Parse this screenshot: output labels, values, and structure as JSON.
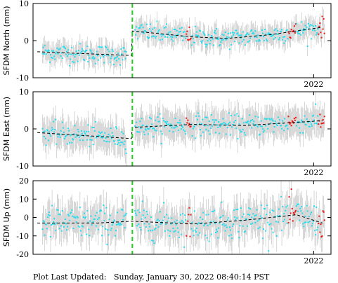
{
  "footer": {
    "label": "Plot Last Updated:",
    "timestamp": "Sunday, January 30, 2022 08:40:14 PST"
  },
  "colors": {
    "normal": "#22ddee",
    "recent": "#ee1111",
    "error": "#cccccc",
    "trend": "#000000",
    "event": "#22cc22"
  },
  "event_year": 2019.9,
  "chart_data": [
    {
      "type": "scatter",
      "ylabel": "SFDM North (mm)",
      "ylim": [
        -10,
        10
      ],
      "yticks": [
        -10,
        0,
        10
      ],
      "xlim": [
        2018.75,
        2022.2
      ],
      "xtick_labels": [
        {
          "x": 2022.0,
          "label": "2022"
        }
      ],
      "grid": false,
      "error_mm": 2.6,
      "trend": [
        [
          2018.8,
          -3.0
        ],
        [
          2019.89,
          -4.0
        ],
        [
          2019.9,
          2.6
        ],
        [
          2020.6,
          1.0
        ],
        [
          2021.0,
          0.6
        ],
        [
          2021.5,
          1.6
        ],
        [
          2022.1,
          3.6
        ]
      ],
      "recent_ranges": [
        [
          2020.52,
          2020.58
        ],
        [
          2021.7,
          2021.8
        ],
        [
          2022.05,
          2022.15
        ]
      ],
      "series": [
        {
          "values_model": "trend + noise",
          "noise_sd": 1.3
        }
      ]
    },
    {
      "type": "scatter",
      "ylabel": "SFDM East (mm)",
      "ylim": [
        -10,
        10
      ],
      "yticks": [
        -10,
        0,
        10
      ],
      "xlim": [
        2018.75,
        2022.2
      ],
      "xtick_labels": [
        {
          "x": 2022.0,
          "label": "2022"
        }
      ],
      "grid": false,
      "error_mm": 3.8,
      "trend": [
        [
          2018.8,
          -1.0
        ],
        [
          2019.89,
          -2.6
        ],
        [
          2019.9,
          0.4
        ],
        [
          2020.6,
          1.2
        ],
        [
          2021.2,
          0.9
        ],
        [
          2022.1,
          2.2
        ]
      ],
      "recent_ranges": [
        [
          2020.52,
          2020.58
        ],
        [
          2021.7,
          2021.8
        ],
        [
          2022.05,
          2022.15
        ]
      ],
      "series": [
        {
          "values_model": "trend + noise",
          "noise_sd": 1.4
        }
      ]
    },
    {
      "type": "scatter",
      "ylabel": "SFDM Up (mm)",
      "ylim": [
        -20,
        20
      ],
      "yticks": [
        -20,
        -10,
        0,
        10,
        20
      ],
      "xlim": [
        2018.75,
        2022.2
      ],
      "xtick_labels": [
        {
          "x": 2022.0,
          "label": "2022"
        }
      ],
      "grid": false,
      "error_mm": 8.5,
      "trend": [
        [
          2018.8,
          -3.0
        ],
        [
          2019.5,
          -3.0
        ],
        [
          2019.9,
          -2.0
        ],
        [
          2020.6,
          -3.5
        ],
        [
          2021.2,
          -1.5
        ],
        [
          2021.8,
          1.5
        ],
        [
          2022.1,
          -3.0
        ]
      ],
      "recent_ranges": [
        [
          2020.52,
          2020.58
        ],
        [
          2021.7,
          2021.8
        ],
        [
          2022.05,
          2022.15
        ]
      ],
      "series": [
        {
          "values_model": "trend + noise",
          "noise_sd": 4.5
        }
      ]
    }
  ]
}
